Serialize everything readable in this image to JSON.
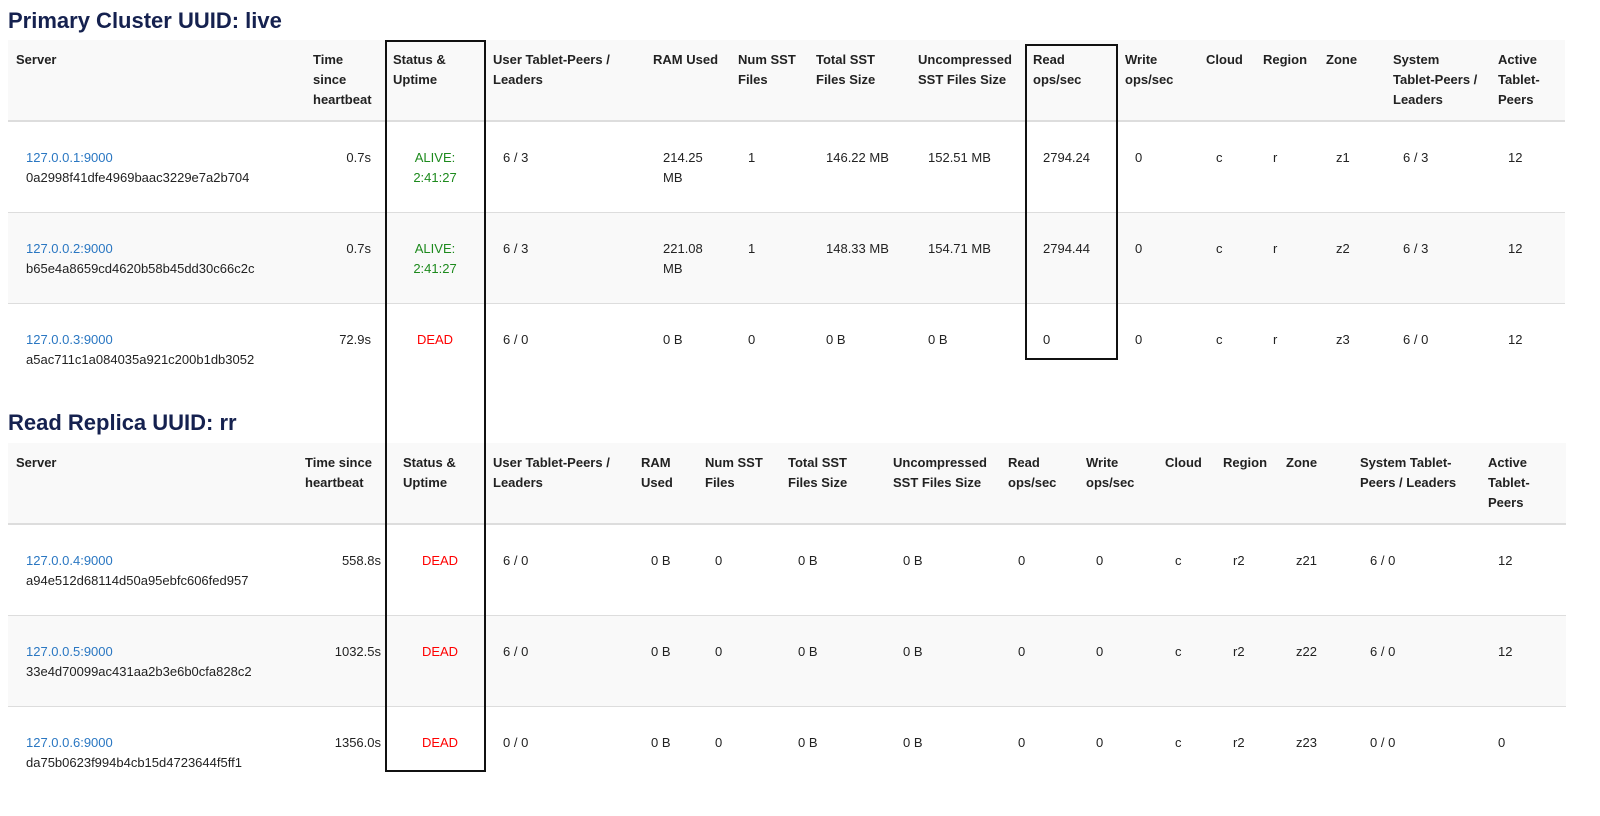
{
  "colors": {
    "alive": "#1d8a1d",
    "dead": "#ff0000",
    "link": "#2a77c2",
    "title": "#15214f"
  },
  "headers": [
    "Server",
    "Time since heartbeat",
    "Status & Uptime",
    "User Tablet-Peers / Leaders",
    "RAM Used",
    "Num SST Files",
    "Total SST Files Size",
    "Uncompressed SST Files Size",
    "Read ops/sec",
    "Write ops/sec",
    "Cloud",
    "Region",
    "Zone",
    "System Tablet-Peers / Leaders",
    "Active Tablet-Peers"
  ],
  "primary": {
    "title": "Primary Cluster UUID: live",
    "rows": [
      {
        "addr": "127.0.0.1:9000",
        "uuid": "0a2998f41dfe4969baac3229e7a2b704",
        "hb": "0.7s",
        "status": "ALIVE: 2:41:27",
        "user": "6 / 3",
        "ram": "214.25 MB",
        "nsst": "1",
        "tsst": "146.22 MB",
        "usst": "152.51 MB",
        "read": "2794.24",
        "write": "0",
        "cloud": "c",
        "region": "r",
        "zone": "z1",
        "sys": "6 / 3",
        "active": "12"
      },
      {
        "addr": "127.0.0.2:9000",
        "uuid": "b65e4a8659cd4620b58b45dd30c66c2c",
        "hb": "0.7s",
        "status": "ALIVE: 2:41:27",
        "user": "6 / 3",
        "ram": "221.08 MB",
        "nsst": "1",
        "tsst": "148.33 MB",
        "usst": "154.71 MB",
        "read": "2794.44",
        "write": "0",
        "cloud": "c",
        "region": "r",
        "zone": "z2",
        "sys": "6 / 3",
        "active": "12"
      },
      {
        "addr": "127.0.0.3:9000",
        "uuid": "a5ac711c1a084035a921c200b1db3052",
        "hb": "72.9s",
        "status": "DEAD",
        "user": "6 / 0",
        "ram": "0 B",
        "nsst": "0",
        "tsst": "0 B",
        "usst": "0 B",
        "read": "0",
        "write": "0",
        "cloud": "c",
        "region": "r",
        "zone": "z3",
        "sys": "6 / 0",
        "active": "12"
      }
    ]
  },
  "replica": {
    "title": "Read Replica UUID: rr",
    "rows": [
      {
        "addr": "127.0.0.4:9000",
        "uuid": "a94e512d68114d50a95ebfc606fed957",
        "hb": "558.8s",
        "status": "DEAD",
        "user": "6 / 0",
        "ram": "0 B",
        "nsst": "0",
        "tsst": "0 B",
        "usst": "0 B",
        "read": "0",
        "write": "0",
        "cloud": "c",
        "region": "r2",
        "zone": "z21",
        "sys": "6 / 0",
        "active": "12"
      },
      {
        "addr": "127.0.0.5:9000",
        "uuid": "33e4d70099ac431aa2b3e6b0cfa828c2",
        "hb": "1032.5s",
        "status": "DEAD",
        "user": "6 / 0",
        "ram": "0 B",
        "nsst": "0",
        "tsst": "0 B",
        "usst": "0 B",
        "read": "0",
        "write": "0",
        "cloud": "c",
        "region": "r2",
        "zone": "z22",
        "sys": "6 / 0",
        "active": "12"
      },
      {
        "addr": "127.0.0.6:9000",
        "uuid": "da75b0623f994b4cb15d4723644f5ff1",
        "hb": "1356.0s",
        "status": "DEAD",
        "user": "0 / 0",
        "ram": "0 B",
        "nsst": "0",
        "tsst": "0 B",
        "usst": "0 B",
        "read": "0",
        "write": "0",
        "cloud": "c",
        "region": "r2",
        "zone": "z23",
        "sys": "0 / 0",
        "active": "0"
      }
    ]
  }
}
